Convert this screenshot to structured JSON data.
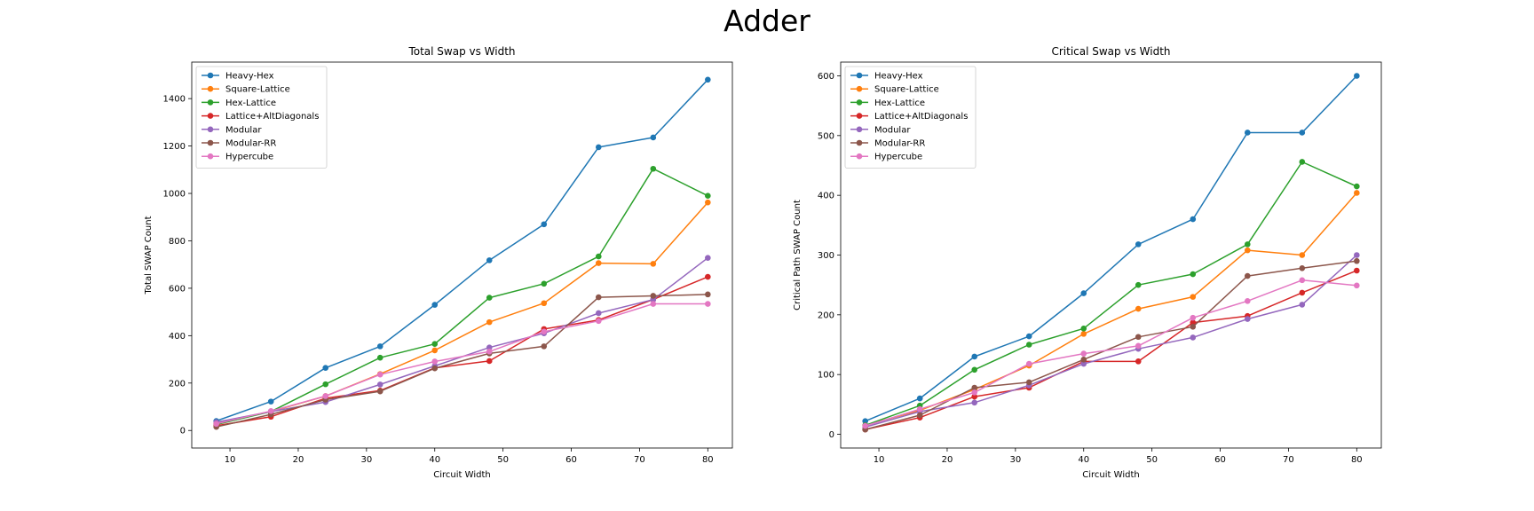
{
  "figure": {
    "title": "Adder"
  },
  "chart_data": [
    {
      "type": "line",
      "title": "Total Swap vs Width",
      "xlabel": "Circuit Width",
      "ylabel": "Total SWAP Count",
      "xlim": [
        4.4,
        83.6
      ],
      "ylim": [
        -74,
        1554
      ],
      "xticks": [
        10,
        20,
        30,
        40,
        50,
        60,
        70,
        80
      ],
      "yticks": [
        0,
        200,
        400,
        600,
        800,
        1000,
        1200,
        1400
      ],
      "legend": "top-left",
      "grid": false,
      "x": [
        8,
        16,
        24,
        32,
        40,
        48,
        56,
        64,
        72,
        80
      ],
      "series": [
        {
          "name": "Heavy-Hex",
          "color": "#1f77b4",
          "values": [
            40,
            122,
            264,
            355,
            530,
            718,
            870,
            1195,
            1236,
            1480
          ]
        },
        {
          "name": "Square-Lattice",
          "color": "#ff7f0e",
          "values": [
            30,
            80,
            145,
            238,
            338,
            457,
            537,
            706,
            703,
            962
          ]
        },
        {
          "name": "Hex-Lattice",
          "color": "#2ca02c",
          "values": [
            25,
            80,
            195,
            307,
            365,
            560,
            619,
            734,
            1104,
            990
          ]
        },
        {
          "name": "Lattice+AltDiagonals",
          "color": "#d62728",
          "values": [
            20,
            58,
            136,
            168,
            264,
            293,
            428,
            466,
            553,
            648
          ]
        },
        {
          "name": "Modular",
          "color": "#9467bd",
          "values": [
            35,
            80,
            120,
            194,
            272,
            350,
            410,
            495,
            552,
            728
          ]
        },
        {
          "name": "Modular-RR",
          "color": "#8c564b",
          "values": [
            15,
            68,
            130,
            165,
            262,
            325,
            355,
            562,
            568,
            574
          ]
        },
        {
          "name": "Hypercube",
          "color": "#e377c2",
          "values": [
            28,
            82,
            145,
            236,
            291,
            333,
            417,
            462,
            534,
            534
          ]
        }
      ]
    },
    {
      "type": "line",
      "title": "Critical Swap vs Width",
      "xlabel": "Circuit Width",
      "ylabel": "Critical Path SWAP Count",
      "xlim": [
        4.4,
        83.6
      ],
      "ylim": [
        -23,
        623
      ],
      "xticks": [
        10,
        20,
        30,
        40,
        50,
        60,
        70,
        80
      ],
      "yticks": [
        0,
        100,
        200,
        300,
        400,
        500,
        600
      ],
      "legend": "top-left",
      "grid": false,
      "x": [
        8,
        16,
        24,
        32,
        40,
        48,
        56,
        64,
        72,
        80
      ],
      "series": [
        {
          "name": "Heavy-Hex",
          "color": "#1f77b4",
          "values": [
            22,
            60,
            130,
            164,
            236,
            318,
            360,
            505,
            505,
            600
          ]
        },
        {
          "name": "Square-Lattice",
          "color": "#ff7f0e",
          "values": [
            15,
            40,
            75,
            115,
            168,
            210,
            230,
            308,
            300,
            404
          ]
        },
        {
          "name": "Hex-Lattice",
          "color": "#2ca02c",
          "values": [
            15,
            48,
            108,
            150,
            177,
            250,
            268,
            318,
            456,
            415
          ]
        },
        {
          "name": "Lattice+AltDiagonals",
          "color": "#d62728",
          "values": [
            8,
            28,
            63,
            78,
            122,
            122,
            187,
            198,
            237,
            274
          ]
        },
        {
          "name": "Modular",
          "color": "#9467bd",
          "values": [
            12,
            38,
            53,
            82,
            118,
            143,
            162,
            193,
            217,
            300
          ]
        },
        {
          "name": "Modular-RR",
          "color": "#8c564b",
          "values": [
            8,
            32,
            78,
            87,
            125,
            163,
            180,
            265,
            278,
            290
          ]
        },
        {
          "name": "Hypercube",
          "color": "#e377c2",
          "values": [
            14,
            42,
            70,
            118,
            135,
            148,
            195,
            223,
            258,
            249
          ]
        }
      ]
    }
  ]
}
